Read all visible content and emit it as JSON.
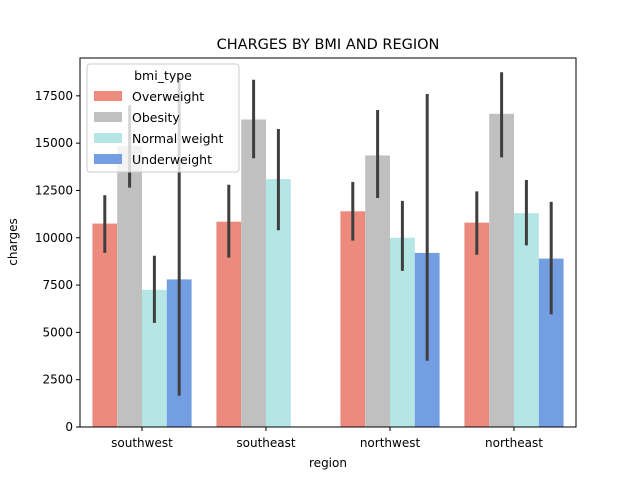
{
  "chart_data": {
    "type": "bar",
    "title": "CHARGES BY BMI AND REGION",
    "xlabel": "region",
    "ylabel": "charges",
    "categories": [
      "southwest",
      "southeast",
      "northwest",
      "northeast"
    ],
    "ylim": [
      0,
      19500
    ],
    "yticks": [
      0,
      2500,
      5000,
      7500,
      10000,
      12500,
      15000,
      17500
    ],
    "ytick_labels": [
      "0",
      "2500",
      "5000",
      "7500",
      "10000",
      "12500",
      "15000",
      "17500"
    ],
    "legend": {
      "title": "bmi_type",
      "placement": "upper-left"
    },
    "grid": false,
    "series": [
      {
        "name": "Overweight",
        "color": "#ec8a7d",
        "values": [
          10750,
          10850,
          11400,
          10800
        ],
        "ci_low": [
          9200,
          8950,
          9850,
          9100
        ],
        "ci_high": [
          12250,
          12800,
          12950,
          12450
        ]
      },
      {
        "name": "Obesity",
        "color": "#c0c0c0",
        "values": [
          14850,
          16250,
          14350,
          16550
        ],
        "ci_low": [
          12650,
          14200,
          12100,
          14250
        ],
        "ci_high": [
          17000,
          18350,
          16750,
          18750
        ]
      },
      {
        "name": "Normal weight",
        "color": "#b5e6e6",
        "values": [
          7250,
          13100,
          10000,
          11300
        ],
        "ci_low": [
          5500,
          10400,
          8250,
          9600
        ],
        "ci_high": [
          9050,
          15750,
          11950,
          13050
        ]
      },
      {
        "name": "Underweight",
        "color": "#739ee2",
        "values": [
          7800,
          null,
          9200,
          8900
        ],
        "ci_low": [
          1650,
          null,
          3500,
          5950
        ],
        "ci_high": [
          18500,
          null,
          17600,
          11900
        ]
      }
    ]
  }
}
